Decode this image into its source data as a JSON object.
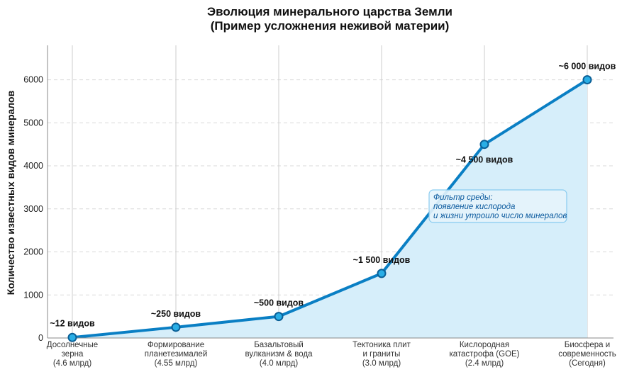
{
  "chart_data": {
    "type": "line",
    "title": "Эволюция минерального царства Земли",
    "subtitle": "(Пример усложнения неживой материи)",
    "ylabel": "Количество известных видов минералов",
    "xlabel": "",
    "ylim": [
      0,
      6800
    ],
    "yticks": [
      0,
      1000,
      2000,
      3000,
      4000,
      5000,
      6000
    ],
    "grid": true,
    "fill_under": true,
    "categories": [
      [
        "Досолнечные",
        "зерна",
        "(4.6 млрд)"
      ],
      [
        "Формирование",
        "планетезималей",
        "(4.55 млрд)"
      ],
      [
        "Базальтовый",
        "вулканизм & вода",
        "(4.0 млрд)"
      ],
      [
        "Тектоника плит",
        "и граниты",
        "(3.0 млрд)"
      ],
      [
        "Кислородная",
        "катастрофа (GOE)",
        "(2.4 млрд)"
      ],
      [
        "Биосфера и",
        "современность",
        "(Сегодня)"
      ]
    ],
    "values": [
      12,
      250,
      500,
      1500,
      4500,
      6000
    ],
    "data_labels": [
      "~12 видов",
      "~250 видов",
      "~500 видов",
      "~1 500 видов",
      "~4 500 видов",
      "~6 000 видов"
    ],
    "annotation": {
      "lines": [
        "Фильтр среды:",
        "появление кислорода",
        "и жизни утроило число минералов"
      ]
    },
    "colors": {
      "line": "#0a7fc4",
      "fill": "#d6eefa",
      "marker_fill": "#29aee6",
      "marker_edge": "#0a5f96",
      "grid": "#d9d9d9",
      "annotation_bg": "#e6f4fc",
      "annotation_border": "#7fc7ee"
    }
  }
}
